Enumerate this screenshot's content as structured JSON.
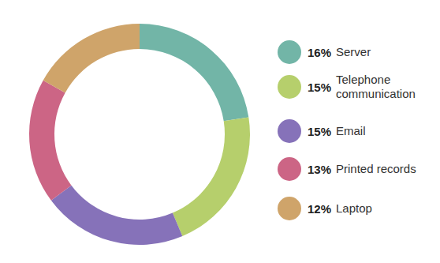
{
  "chart_data": {
    "type": "pie",
    "categories": [
      "Server",
      "Telephone communication",
      "Email",
      "Printed records",
      "Laptop"
    ],
    "values": [
      16,
      15,
      15,
      13,
      12
    ],
    "value_labels": [
      "16%",
      "15%",
      "15%",
      "13%",
      "12%"
    ],
    "colors": [
      "#72b5a7",
      "#b6cf6c",
      "#8672b9",
      "#cc6585",
      "#cfa46a"
    ],
    "legend": "right"
  }
}
